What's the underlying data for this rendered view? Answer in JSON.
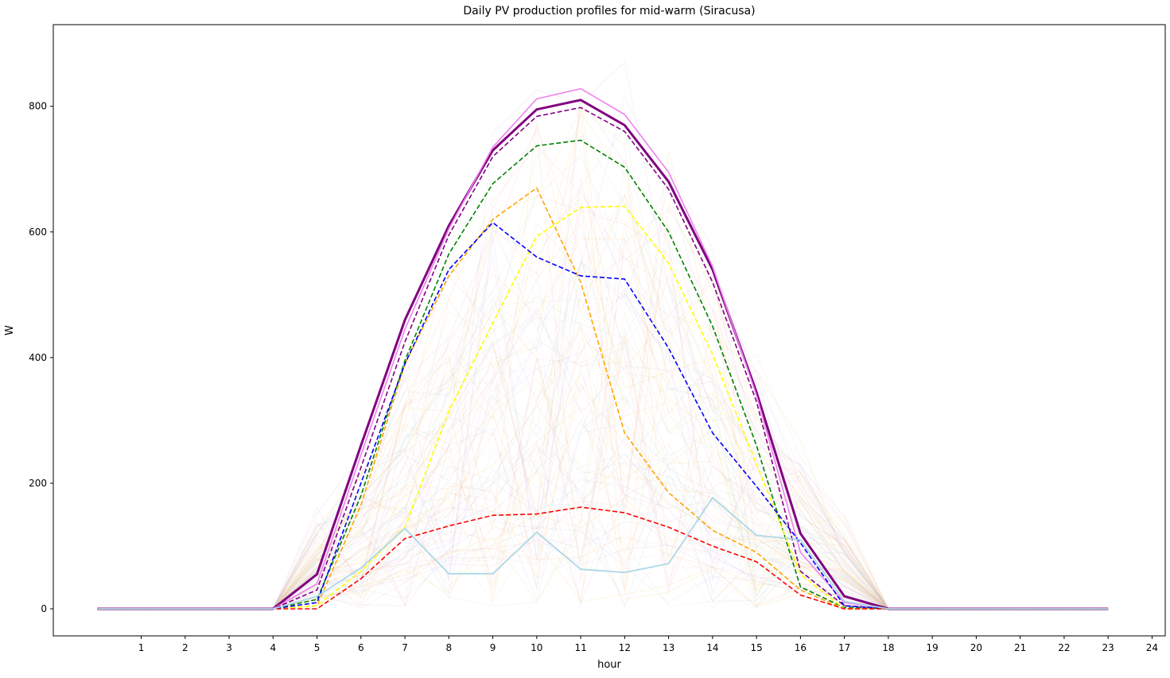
{
  "chart_data": {
    "type": "line",
    "title": "Daily PV production profiles for mid-warm (Siracusa)",
    "xlabel": "hour",
    "ylabel": "W",
    "xlim": [
      -1.0,
      24.3
    ],
    "ylim": [
      -43,
      930
    ],
    "x_ticks": [
      "1",
      "2",
      "3",
      "4",
      "5",
      "6",
      "7",
      "8",
      "9",
      "10",
      "11",
      "12",
      "13",
      "14",
      "15",
      "16",
      "17",
      "18",
      "19",
      "20",
      "21",
      "22",
      "23",
      "24"
    ],
    "y_ticks": [
      "0",
      "200",
      "400",
      "600",
      "800"
    ],
    "x": [
      0,
      1,
      2,
      3,
      4,
      5,
      6,
      7,
      8,
      9,
      10,
      11,
      12,
      13,
      14,
      15,
      16,
      17,
      18,
      19,
      20,
      21,
      22,
      23
    ],
    "series": [
      {
        "color": "#800080",
        "dash": false,
        "width": 3,
        "values": [
          0,
          0,
          0,
          0,
          0,
          55,
          260,
          460,
          610,
          730,
          795,
          810,
          770,
          680,
          540,
          345,
          120,
          20,
          0,
          0,
          0,
          0,
          0,
          0
        ]
      },
      {
        "color": "#ee82ee",
        "dash": false,
        "width": 1.6,
        "values": [
          0,
          0,
          0,
          0,
          0,
          40,
          245,
          445,
          605,
          735,
          812,
          828,
          787,
          695,
          545,
          340,
          90,
          10,
          0,
          0,
          0,
          0,
          0,
          0
        ]
      },
      {
        "color": "#800080",
        "dash": true,
        "width": 1.6,
        "values": [
          0,
          0,
          0,
          0,
          0,
          30,
          225,
          425,
          595,
          720,
          784,
          798,
          760,
          668,
          520,
          330,
          60,
          5,
          0,
          0,
          0,
          0,
          0,
          0
        ]
      },
      {
        "color": "#008000",
        "dash": true,
        "width": 1.6,
        "values": [
          0,
          0,
          0,
          0,
          0,
          15,
          180,
          395,
          565,
          677,
          737,
          746,
          703,
          600,
          450,
          260,
          35,
          2,
          0,
          0,
          0,
          0,
          0,
          0
        ]
      },
      {
        "color": "#ffa500",
        "dash": true,
        "width": 1.6,
        "values": [
          0,
          0,
          0,
          0,
          0,
          5,
          165,
          390,
          530,
          620,
          670,
          520,
          280,
          185,
          125,
          90,
          30,
          0,
          0,
          0,
          0,
          0,
          0,
          0
        ]
      },
      {
        "color": "#ffff00",
        "dash": true,
        "width": 1.6,
        "values": [
          0,
          0,
          0,
          0,
          0,
          5,
          60,
          130,
          315,
          455,
          593,
          639,
          641,
          550,
          405,
          230,
          55,
          0,
          0,
          0,
          0,
          0,
          0,
          0
        ]
      },
      {
        "color": "#0000ff",
        "dash": true,
        "width": 1.6,
        "values": [
          0,
          0,
          0,
          0,
          0,
          10,
          200,
          390,
          540,
          615,
          560,
          530,
          525,
          415,
          280,
          195,
          105,
          5,
          0,
          0,
          0,
          0,
          0,
          0
        ]
      },
      {
        "color": "#ff0000",
        "dash": true,
        "width": 1.6,
        "values": [
          0,
          0,
          0,
          0,
          0,
          0,
          48,
          112,
          132,
          149,
          151,
          162,
          153,
          130,
          100,
          75,
          22,
          0,
          0,
          0,
          0,
          0,
          0,
          0
        ]
      },
      {
        "color": "#add8e6",
        "dash": false,
        "width": 1.8,
        "values": [
          0,
          0,
          0,
          0,
          0,
          20,
          65,
          128,
          56,
          56,
          122,
          63,
          58,
          72,
          177,
          117,
          110,
          12,
          0,
          0,
          0,
          0,
          0,
          0
        ]
      }
    ]
  }
}
